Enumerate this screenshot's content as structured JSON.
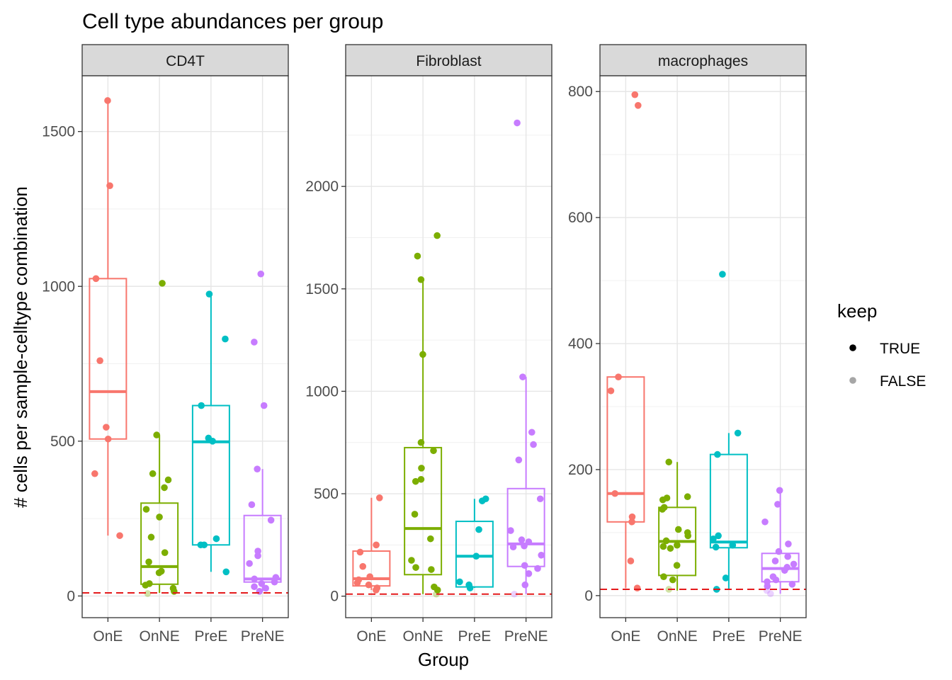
{
  "chart_data": {
    "type": "boxplot",
    "title": "Cell type abundances per group",
    "xlabel": "Group",
    "ylabel": "# cells per sample-celltype combination",
    "threshold": 10,
    "threshold_color": "#e41a1c",
    "categories": [
      "OnE",
      "OnNE",
      "PreE",
      "PreNE"
    ],
    "group_colors": {
      "OnE": "#f8766d",
      "OnNE": "#7cae00",
      "PreE": "#00bfc4",
      "PreNE": "#c77cff"
    },
    "legend": {
      "title": "keep",
      "position": "right",
      "entries": [
        {
          "label": "TRUE",
          "color": "#000000",
          "opacity": 1.0
        },
        {
          "label": "FALSE",
          "color": "#000000",
          "opacity": 0.35
        }
      ]
    },
    "grid": true,
    "panels": [
      {
        "label": "CD4T",
        "ylim": [
          -70,
          1680
        ],
        "yticks": [
          0,
          500,
          1000,
          1500
        ],
        "boxes": [
          {
            "group": "OnE",
            "min": 195,
            "q1": 507,
            "median": 660,
            "q3": 1025,
            "max": 1600
          },
          {
            "group": "OnNE",
            "min": 10,
            "q1": 38,
            "median": 95,
            "q3": 300,
            "max": 520
          },
          {
            "group": "PreE",
            "min": 78,
            "q1": 165,
            "median": 498,
            "q3": 615,
            "max": 975
          },
          {
            "group": "PreNE",
            "min": 15,
            "q1": 45,
            "median": 55,
            "q3": 260,
            "max": 410
          }
        ],
        "points": {
          "OnE": [
            1600,
            1325,
            1025,
            760,
            545,
            507,
            395,
            195
          ],
          "OnNE": [
            1010,
            520,
            395,
            375,
            350,
            280,
            255,
            190,
            140,
            110,
            80,
            75,
            40,
            35,
            25,
            15,
            8
          ],
          "PreE": [
            975,
            830,
            615,
            510,
            500,
            185,
            165,
            165,
            78
          ],
          "PreNE": [
            1040,
            820,
            615,
            410,
            295,
            245,
            145,
            130,
            105,
            60,
            55,
            45,
            40,
            30,
            25,
            15
          ]
        },
        "excluded_points": {
          "OnNE": [
            8
          ]
        }
      },
      {
        "label": "Fibroblast",
        "ylim": [
          -105,
          2540
        ],
        "yticks": [
          0,
          500,
          1000,
          1500,
          2000
        ],
        "boxes": [
          {
            "group": "OnE",
            "min": 30,
            "q1": 50,
            "median": 85,
            "q3": 220,
            "max": 480
          },
          {
            "group": "OnNE",
            "min": 10,
            "q1": 105,
            "median": 330,
            "q3": 725,
            "max": 1545
          },
          {
            "group": "PreE",
            "min": 40,
            "q1": 45,
            "median": 195,
            "q3": 365,
            "max": 475
          },
          {
            "group": "PreNE",
            "min": 10,
            "q1": 145,
            "median": 255,
            "q3": 525,
            "max": 1070
          }
        ],
        "points": {
          "OnE": [
            480,
            250,
            215,
            145,
            95,
            80,
            65,
            55,
            40,
            30
          ],
          "OnNE": [
            1760,
            1660,
            1545,
            1180,
            750,
            710,
            625,
            570,
            560,
            400,
            280,
            175,
            140,
            130,
            45,
            30,
            10
          ],
          "PreE": [
            475,
            465,
            325,
            195,
            70,
            55,
            40
          ],
          "PreNE": [
            2310,
            1070,
            800,
            740,
            665,
            475,
            320,
            275,
            265,
            245,
            240,
            200,
            150,
            135,
            110,
            55,
            10
          ]
        },
        "excluded_points": {
          "OnNE": [
            10
          ],
          "PreNE": [
            10
          ]
        }
      },
      {
        "label": "macrophages",
        "ylim": [
          -35,
          825
        ],
        "yticks": [
          0,
          200,
          400,
          600,
          800
        ],
        "boxes": [
          {
            "group": "OnE",
            "min": 12,
            "q1": 117,
            "median": 162,
            "q3": 347,
            "max": 347
          },
          {
            "group": "OnNE",
            "min": 8,
            "q1": 32,
            "median": 86,
            "q3": 140,
            "max": 212
          },
          {
            "group": "PreE",
            "min": 10,
            "q1": 76,
            "median": 85,
            "q3": 224,
            "max": 258
          },
          {
            "group": "PreNE",
            "min": 3,
            "q1": 22,
            "median": 43,
            "q3": 67,
            "max": 167
          }
        ],
        "points": {
          "OnE": [
            795,
            778,
            347,
            325,
            162,
            125,
            117,
            55,
            12
          ],
          "OnNE": [
            212,
            157,
            155,
            152,
            140,
            137,
            105,
            100,
            95,
            87,
            80,
            78,
            75,
            48,
            30,
            25,
            10
          ],
          "PreE": [
            510,
            258,
            224,
            95,
            90,
            80,
            77,
            28,
            10
          ],
          "PreNE": [
            167,
            145,
            117,
            82,
            70,
            62,
            55,
            50,
            45,
            40,
            30,
            25,
            22,
            18,
            15,
            8,
            3
          ]
        },
        "excluded_points": {
          "OnNE": [
            10
          ],
          "PreNE": [
            3,
            8
          ]
        }
      }
    ]
  }
}
